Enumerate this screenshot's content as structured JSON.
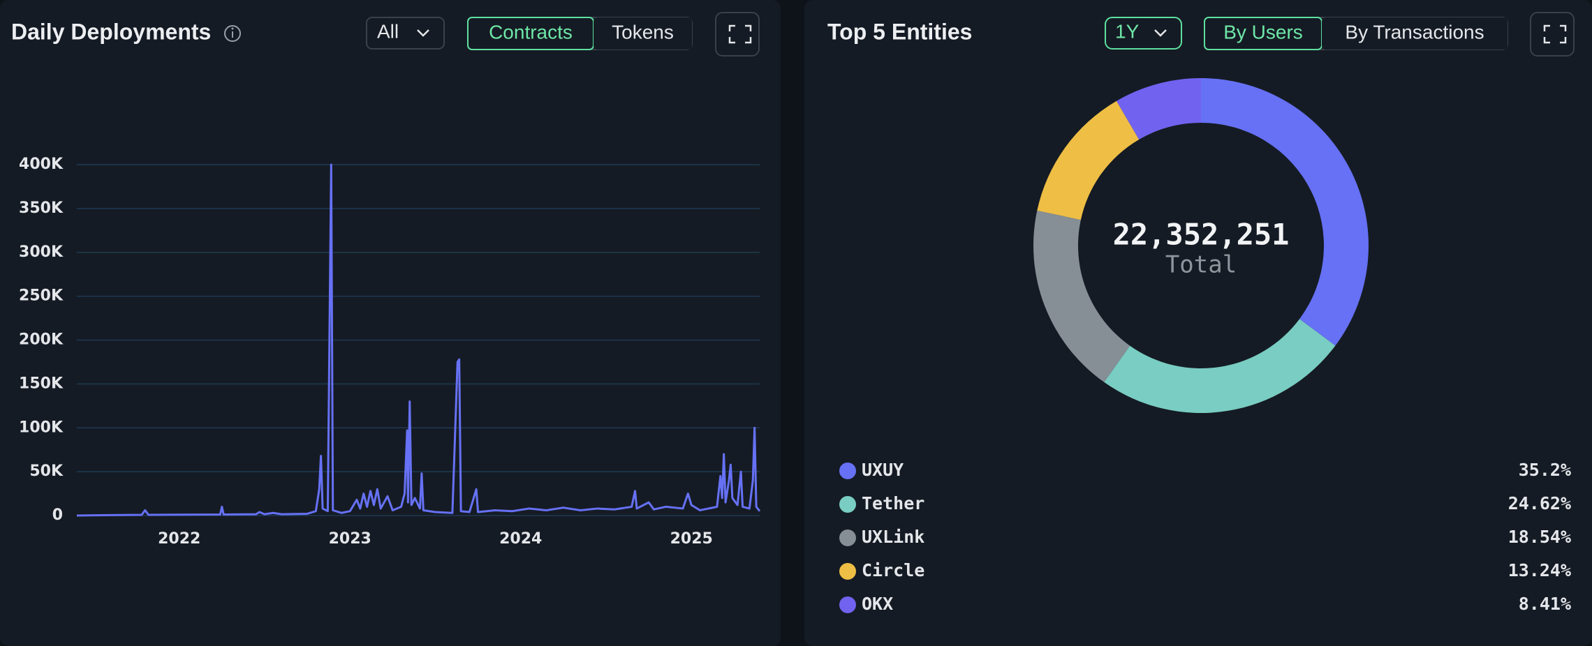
{
  "chart_data": [
    {
      "type": "line",
      "title": "Daily Deployments",
      "controls": {
        "filter": "All",
        "toggle": [
          "Contracts",
          "Tokens"
        ],
        "toggle_active": 0
      },
      "x": [
        2021.4,
        2021.6,
        2021.78,
        2021.8,
        2021.82,
        2022.0,
        2022.24,
        2022.25,
        2022.26,
        2022.45,
        2022.47,
        2022.5,
        2022.55,
        2022.6,
        2022.75,
        2022.8,
        2022.82,
        2022.83,
        2022.84,
        2022.87,
        2022.89,
        2022.9,
        2022.95,
        2023.0,
        2023.04,
        2023.06,
        2023.08,
        2023.1,
        2023.12,
        2023.14,
        2023.16,
        2023.18,
        2023.22,
        2023.25,
        2023.3,
        2023.32,
        2023.335,
        2023.34,
        2023.35,
        2023.36,
        2023.38,
        2023.41,
        2023.42,
        2023.43,
        2023.5,
        2023.6,
        2023.63,
        2023.64,
        2023.65,
        2023.7,
        2023.74,
        2023.75,
        2023.85,
        2023.95,
        2024.05,
        2024.15,
        2024.25,
        2024.35,
        2024.45,
        2024.55,
        2024.65,
        2024.67,
        2024.68,
        2024.75,
        2024.78,
        2024.85,
        2024.95,
        2024.98,
        2025.0,
        2025.05,
        2025.1,
        2025.15,
        2025.17,
        2025.18,
        2025.19,
        2025.2,
        2025.22,
        2025.23,
        2025.24,
        2025.27,
        2025.29,
        2025.3,
        2025.34,
        2025.36,
        2025.37,
        2025.38,
        2025.4
      ],
      "series": [
        {
          "name": "Deployments",
          "color": "#6671f5",
          "values": [
            0,
            500,
            800,
            6000,
            800,
            1000,
            1200,
            10000,
            1200,
            1500,
            4000,
            1500,
            3000,
            1500,
            2000,
            5000,
            30000,
            68000,
            8000,
            5000,
            400000,
            6000,
            3000,
            5000,
            18000,
            8000,
            25000,
            10000,
            28000,
            12000,
            30000,
            8000,
            22000,
            6000,
            10000,
            25000,
            97000,
            15000,
            130000,
            12000,
            20000,
            8000,
            48000,
            6000,
            4000,
            3000,
            175000,
            178000,
            5000,
            4000,
            30000,
            4000,
            6000,
            5000,
            8000,
            6000,
            9000,
            6000,
            8000,
            7000,
            10000,
            28000,
            8000,
            15000,
            7000,
            10000,
            8000,
            25000,
            12000,
            6000,
            8000,
            10000,
            45000,
            20000,
            70000,
            15000,
            40000,
            58000,
            20000,
            12000,
            50000,
            10000,
            8000,
            40000,
            100000,
            10000,
            5000
          ]
        }
      ],
      "xlim": [
        2021.4,
        2025.4
      ],
      "xticks": [
        2022,
        2023,
        2024,
        2025
      ],
      "ylim": [
        0,
        400000
      ],
      "yticks": [
        0,
        {
          "value": 50000,
          "label": "50K"
        },
        {
          "value": 100000,
          "label": "100K"
        },
        {
          "value": 150000,
          "label": "150K"
        },
        {
          "value": 200000,
          "label": "200K"
        },
        {
          "value": 250000,
          "label": "250K"
        },
        {
          "value": 300000,
          "label": "300K"
        },
        {
          "value": 350000,
          "label": "350K"
        },
        {
          "value": 400000,
          "label": "400K"
        }
      ],
      "grid": true
    },
    {
      "type": "donut",
      "title": "Top 5 Entities",
      "controls": {
        "filter": "1Y",
        "toggle": [
          "By Users",
          "By Transactions"
        ],
        "toggle_active": 0
      },
      "total": {
        "value": 22352251,
        "label": "22,352,251"
      },
      "total_caption": "Total",
      "categories": [
        "UXUY",
        "Tether",
        "UXLink",
        "Circle",
        "OKX"
      ],
      "values": [
        35.2,
        24.62,
        18.54,
        13.24,
        8.41
      ],
      "value_labels": [
        "35.2%",
        "24.62%",
        "18.54%",
        "13.24%",
        "8.41%"
      ],
      "colors": [
        "#6671f5",
        "#79cdc2",
        "#868e96",
        "#eebe45",
        "#7163f0"
      ]
    }
  ]
}
